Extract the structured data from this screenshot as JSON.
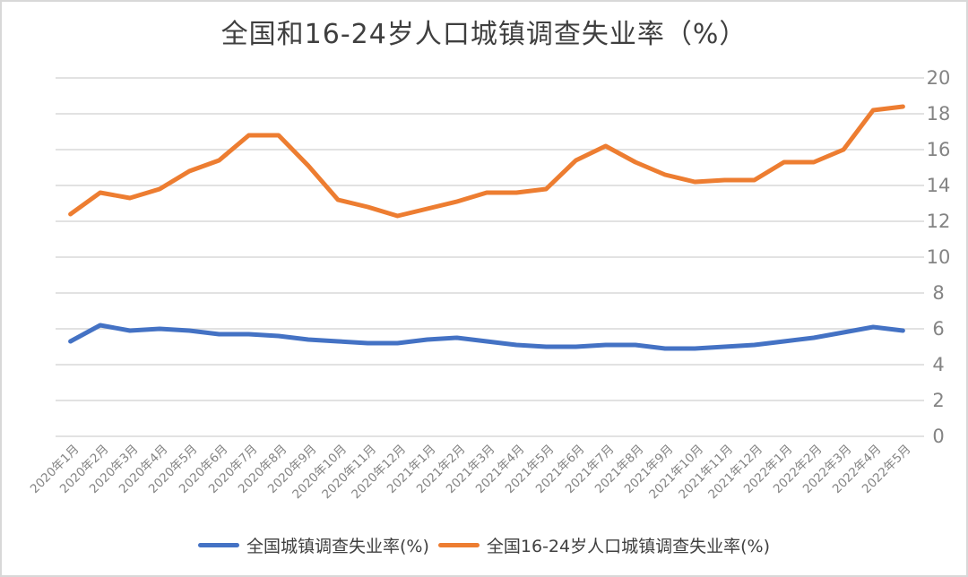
{
  "title": "全国和16-24岁人口城镇调查失业率（%）",
  "colors": {
    "national_line": "#4472C4",
    "youth_line": "#ED7D31",
    "gridline": "#D9D9D9",
    "title_text": "#3F3F3F",
    "axis_text": "#848484",
    "legend_text": "#404040",
    "border": "#D8D8D8",
    "background": "#FFFFFF"
  },
  "chart_data": {
    "type": "line",
    "title": "全国和16-24岁人口城镇调查失业率（%）",
    "categories": [
      "2020年1月",
      "2020年2月",
      "2020年3月",
      "2020年4月",
      "2020年5月",
      "2020年6月",
      "2020年7月",
      "2020年8月",
      "2020年9月",
      "2020年10月",
      "2020年11月",
      "2020年12月",
      "2021年1月",
      "2021年2月",
      "2021年3月",
      "2021年4月",
      "2021年5月",
      "2021年6月",
      "2021年7月",
      "2021年8月",
      "2021年9月",
      "2021年10月",
      "2021年11月",
      "2021年12月",
      "2022年1月",
      "2022年2月",
      "2022年3月",
      "2022年4月",
      "2022年5月"
    ],
    "series": [
      {
        "name": "全国城镇调查失业率(%)",
        "color": "#4472C4",
        "values": [
          5.3,
          6.2,
          5.9,
          6.0,
          5.9,
          5.7,
          5.7,
          5.6,
          5.4,
          5.3,
          5.2,
          5.2,
          5.4,
          5.5,
          5.3,
          5.1,
          5.0,
          5.0,
          5.1,
          5.1,
          4.9,
          4.9,
          5.0,
          5.1,
          5.3,
          5.5,
          5.8,
          6.1,
          5.9
        ]
      },
      {
        "name": "全国16-24岁人口城镇调查失业率(%)",
        "color": "#ED7D31",
        "values": [
          12.4,
          13.6,
          13.3,
          13.8,
          14.8,
          15.4,
          16.8,
          16.8,
          15.1,
          13.2,
          12.8,
          12.3,
          12.7,
          13.1,
          13.6,
          13.6,
          13.8,
          15.4,
          16.2,
          15.3,
          14.6,
          14.2,
          14.3,
          14.3,
          15.3,
          15.3,
          16.0,
          18.2,
          18.4
        ]
      }
    ],
    "xlabel": "",
    "ylabel": "",
    "ylim": [
      0,
      20
    ],
    "y_ticks": [
      0,
      2,
      4,
      6,
      8,
      10,
      12,
      14,
      16,
      18,
      20
    ],
    "y_tick_labels": [
      "0",
      "2",
      "4",
      "6",
      "8",
      "10",
      "12",
      "14",
      "16",
      "18",
      "20"
    ],
    "y_axis_side": "right",
    "grid": "horizontal",
    "legend_position": "bottom",
    "x_label_rotation": -45
  }
}
